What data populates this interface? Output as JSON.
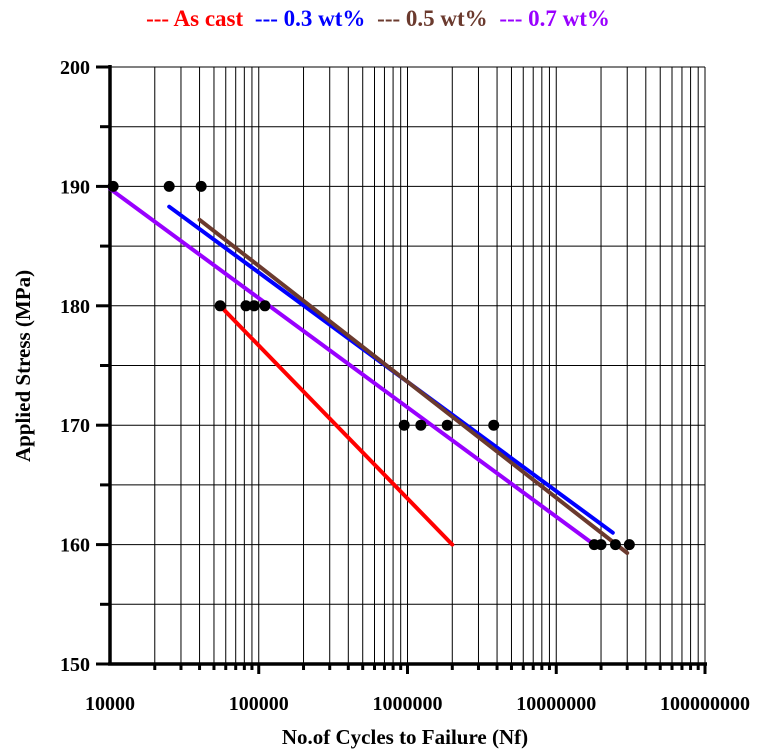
{
  "chart_data": {
    "type": "line",
    "title": "",
    "xlabel": "No.of Cycles to Failure (Nf)",
    "ylabel": "Applied Stress (MPa)",
    "x_scale": "log",
    "xlim": [
      10000,
      100000000
    ],
    "ylim": [
      150,
      200
    ],
    "x_ticks": [
      "10000",
      "100000",
      "1000000",
      "10000000",
      "100000000"
    ],
    "y_ticks": [
      "150",
      "160",
      "170",
      "180",
      "190",
      "200"
    ],
    "grid": true,
    "legend_position": "top",
    "legend": [
      {
        "label": "--- As cast",
        "color": "#ff0000"
      },
      {
        "label": "--- 0.3 wt%",
        "color": "#0000ff"
      },
      {
        "label": "--- 0.5 wt%",
        "color": "#6b3a2e"
      },
      {
        "label": "--- 0.7 wt%",
        "color": "#9900ff"
      }
    ],
    "series": [
      {
        "name": "As cast",
        "color": "#ff0000",
        "line": [
          [
            55000,
            180
          ],
          [
            2000000,
            160
          ]
        ]
      },
      {
        "name": "0.3 wt%",
        "color": "#0000ff",
        "line": [
          [
            25000,
            188.3
          ],
          [
            24000000,
            161
          ]
        ]
      },
      {
        "name": "0.5 wt%",
        "color": "#6b3a2e",
        "line": [
          [
            40000,
            187.2
          ],
          [
            30000000,
            159.3
          ]
        ]
      },
      {
        "name": "0.7 wt%",
        "color": "#9900ff",
        "line": [
          [
            10000,
            189.8
          ],
          [
            18000000,
            160
          ]
        ]
      }
    ],
    "points": [
      [
        10500,
        190
      ],
      [
        25000,
        190
      ],
      [
        41000,
        190
      ],
      [
        55000,
        180
      ],
      [
        82000,
        180
      ],
      [
        93000,
        180
      ],
      [
        110000,
        180
      ],
      [
        950000,
        170
      ],
      [
        1230000,
        170
      ],
      [
        1850000,
        170
      ],
      [
        3800000,
        170
      ],
      [
        18000000,
        160
      ],
      [
        20000000,
        160
      ],
      [
        25000000,
        160
      ],
      [
        31000000,
        160
      ]
    ]
  }
}
